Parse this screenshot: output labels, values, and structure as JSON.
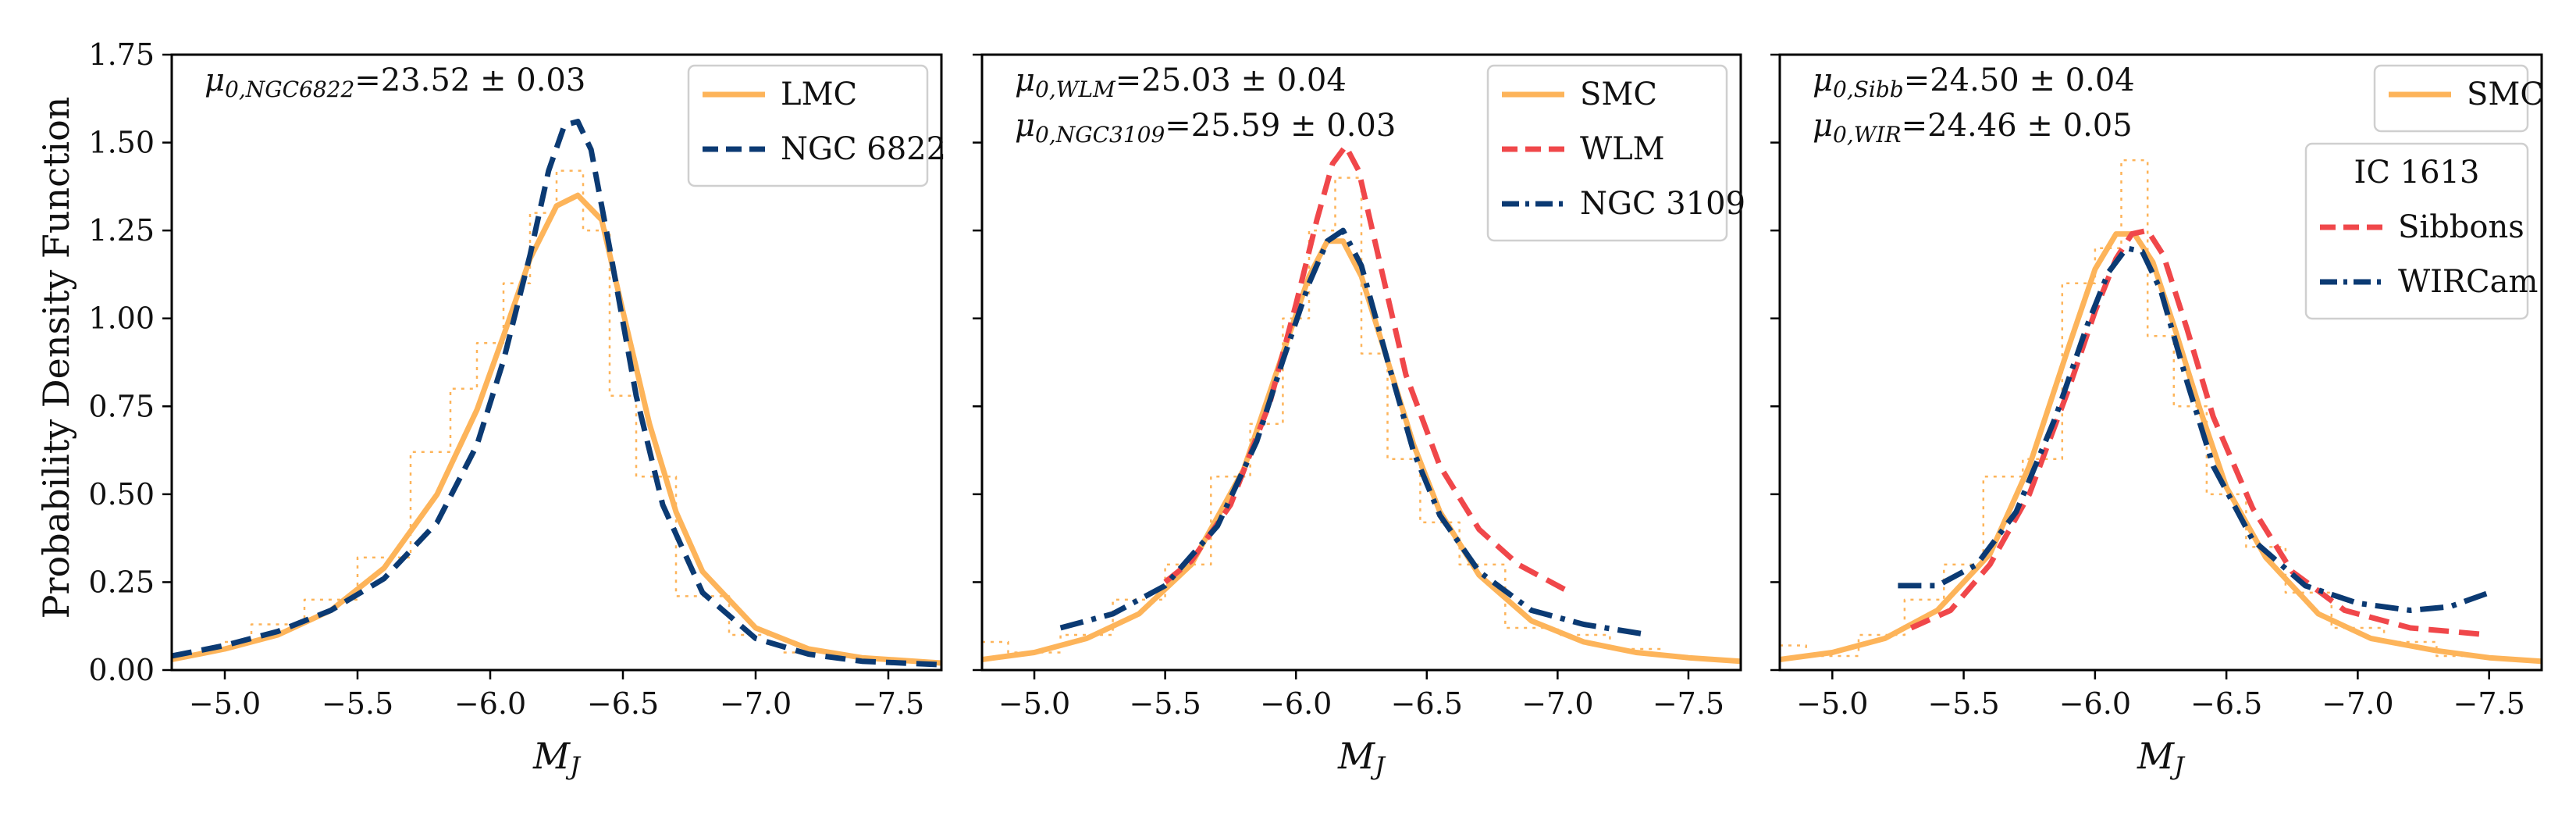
{
  "ylabel": "Probability Density Function",
  "xlabel_main": "M",
  "xlabel_sub": "J",
  "chart_data": [
    {
      "type": "line",
      "panel": "left",
      "xlim": [
        -4.8,
        -7.7
      ],
      "ylim": [
        0,
        1.75
      ],
      "xticks": [
        -5.0,
        -5.5,
        -6.0,
        -6.5,
        -7.0,
        -7.5
      ],
      "yticks": [
        0.0,
        0.25,
        0.5,
        0.75,
        1.0,
        1.25,
        1.5,
        1.75
      ],
      "xtick_labels": [
        "−5.0",
        "−5.5",
        "−6.0",
        "−6.5",
        "−7.0",
        "−7.5"
      ],
      "ytick_labels": [
        "0.00",
        "0.25",
        "0.50",
        "0.75",
        "1.00",
        "1.25",
        "1.50",
        "1.75"
      ],
      "annotations": [
        {
          "mu": "μ",
          "sub": "0,NGC6822",
          "text": "=23.52 ± 0.03"
        }
      ],
      "legend": {
        "title": "",
        "position": "top-right",
        "entries": [
          {
            "label": "LMC",
            "style": "solid",
            "color": "#fdb45a"
          },
          {
            "label": "NGC 6822",
            "style": "dashed",
            "color": "#0b3a73"
          }
        ]
      },
      "series": [
        {
          "name": "LMC",
          "style": "solid",
          "color": "#fdb45a",
          "x": [
            -4.8,
            -5.0,
            -5.2,
            -5.4,
            -5.6,
            -5.8,
            -5.95,
            -6.05,
            -6.15,
            -6.25,
            -6.33,
            -6.42,
            -6.5,
            -6.6,
            -6.7,
            -6.8,
            -7.0,
            -7.2,
            -7.4,
            -7.7
          ],
          "y": [
            0.03,
            0.06,
            0.1,
            0.17,
            0.29,
            0.5,
            0.74,
            0.95,
            1.17,
            1.32,
            1.35,
            1.28,
            1.02,
            0.7,
            0.45,
            0.28,
            0.12,
            0.06,
            0.035,
            0.02
          ]
        },
        {
          "name": "NGC 6822",
          "style": "dashed",
          "color": "#0b3a73",
          "x": [
            -4.8,
            -5.0,
            -5.2,
            -5.4,
            -5.6,
            -5.8,
            -5.95,
            -6.05,
            -6.15,
            -6.22,
            -6.28,
            -6.33,
            -6.38,
            -6.45,
            -6.55,
            -6.65,
            -6.8,
            -7.0,
            -7.2,
            -7.4,
            -7.7
          ],
          "y": [
            0.04,
            0.07,
            0.11,
            0.17,
            0.26,
            0.42,
            0.64,
            0.88,
            1.18,
            1.42,
            1.55,
            1.56,
            1.48,
            1.2,
            0.78,
            0.47,
            0.22,
            0.09,
            0.045,
            0.025,
            0.015
          ]
        },
        {
          "name": "LMC histogram",
          "style": "step-dotted",
          "color": "#fdb45a",
          "x": [
            -5.0,
            -5.2,
            -5.4,
            -5.6,
            -5.8,
            -5.9,
            -6.0,
            -6.1,
            -6.2,
            -6.3,
            -6.4,
            -6.5,
            -6.6,
            -6.8,
            -7.0,
            -7.2
          ],
          "y": [
            0.08,
            0.13,
            0.2,
            0.32,
            0.62,
            0.8,
            0.93,
            1.1,
            1.3,
            1.42,
            1.25,
            0.78,
            0.55,
            0.21,
            0.1,
            0.05
          ]
        }
      ]
    },
    {
      "type": "line",
      "panel": "middle",
      "xlim": [
        -4.8,
        -7.7
      ],
      "ylim": [
        0,
        1.75
      ],
      "xticks": [
        -5.0,
        -5.5,
        -6.0,
        -6.5,
        -7.0,
        -7.5
      ],
      "yticks": [
        0.0,
        0.25,
        0.5,
        0.75,
        1.0,
        1.25,
        1.5,
        1.75
      ],
      "xtick_labels": [
        "−5.0",
        "−5.5",
        "−6.0",
        "−6.5",
        "−7.0",
        "−7.5"
      ],
      "annotations": [
        {
          "mu": "μ",
          "sub": "0,WLM",
          "text": "=25.03 ± 0.04"
        },
        {
          "mu": "μ",
          "sub": "0,NGC3109",
          "text": "=25.59 ± 0.03"
        }
      ],
      "legend": {
        "title": "",
        "position": "top-right",
        "entries": [
          {
            "label": "SMC",
            "style": "solid",
            "color": "#fdb45a"
          },
          {
            "label": "WLM",
            "style": "dashed",
            "color": "#f0474a"
          },
          {
            "label": "NGC 3109",
            "style": "dashdot",
            "color": "#0b3a73"
          }
        ]
      },
      "series": [
        {
          "name": "SMC",
          "style": "solid",
          "color": "#fdb45a",
          "x": [
            -4.8,
            -5.0,
            -5.2,
            -5.4,
            -5.6,
            -5.8,
            -5.95,
            -6.05,
            -6.12,
            -6.18,
            -6.25,
            -6.35,
            -6.45,
            -6.55,
            -6.7,
            -6.9,
            -7.1,
            -7.3,
            -7.5,
            -7.7
          ],
          "y": [
            0.03,
            0.05,
            0.09,
            0.16,
            0.3,
            0.57,
            0.9,
            1.12,
            1.22,
            1.22,
            1.12,
            0.88,
            0.64,
            0.45,
            0.27,
            0.14,
            0.08,
            0.05,
            0.035,
            0.025
          ]
        },
        {
          "name": "WLM",
          "style": "dashed",
          "color": "#f0474a",
          "x": [
            -5.5,
            -5.6,
            -5.75,
            -5.9,
            -6.0,
            -6.08,
            -6.14,
            -6.19,
            -6.24,
            -6.32,
            -6.42,
            -6.55,
            -6.7,
            -6.85,
            -7.05
          ],
          "y": [
            0.25,
            0.31,
            0.47,
            0.76,
            1.04,
            1.28,
            1.44,
            1.49,
            1.42,
            1.16,
            0.84,
            0.58,
            0.4,
            0.3,
            0.22
          ]
        },
        {
          "name": "NGC 3109",
          "style": "dashdot",
          "color": "#0b3a73",
          "x": [
            -5.1,
            -5.3,
            -5.5,
            -5.7,
            -5.85,
            -5.95,
            -6.05,
            -6.12,
            -6.18,
            -6.25,
            -6.35,
            -6.45,
            -6.55,
            -6.7,
            -6.9,
            -7.1,
            -7.35
          ],
          "y": [
            0.12,
            0.16,
            0.24,
            0.41,
            0.65,
            0.88,
            1.1,
            1.22,
            1.25,
            1.15,
            0.88,
            0.62,
            0.44,
            0.28,
            0.17,
            0.13,
            0.1
          ]
        },
        {
          "name": "SMC histogram",
          "style": "step-dotted",
          "color": "#fdb45a",
          "x": [
            -4.8,
            -5.0,
            -5.2,
            -5.4,
            -5.6,
            -5.75,
            -5.9,
            -6.0,
            -6.1,
            -6.2,
            -6.3,
            -6.4,
            -6.55,
            -6.7,
            -6.9,
            -7.1,
            -7.3,
            -7.5
          ],
          "y": [
            0.08,
            0.05,
            0.1,
            0.2,
            0.3,
            0.55,
            0.7,
            1.0,
            1.25,
            1.4,
            0.9,
            0.6,
            0.42,
            0.3,
            0.12,
            0.1,
            0.06,
            0.04
          ]
        }
      ]
    },
    {
      "type": "line",
      "panel": "right",
      "xlim": [
        -4.8,
        -7.7
      ],
      "ylim": [
        0,
        1.75
      ],
      "xticks": [
        -5.0,
        -5.5,
        -6.0,
        -6.5,
        -7.0,
        -7.5
      ],
      "yticks": [
        0.0,
        0.25,
        0.5,
        0.75,
        1.0,
        1.25,
        1.5,
        1.75
      ],
      "xtick_labels": [
        "−5.0",
        "−5.5",
        "−6.0",
        "−6.5",
        "−7.0",
        "−7.5"
      ],
      "annotations": [
        {
          "mu": "μ",
          "sub": "0,Sibb",
          "text": "=24.50 ± 0.04"
        },
        {
          "mu": "μ",
          "sub": "0,WIR",
          "text": "=24.46 ± 0.05"
        }
      ],
      "legend": {
        "title": "",
        "position": "top-right",
        "entries": [
          {
            "label": "SMC",
            "style": "solid",
            "color": "#fdb45a"
          }
        ]
      },
      "legend2": {
        "title": "IC 1613",
        "position": "upper-right",
        "entries": [
          {
            "label": "Sibbons",
            "style": "dashed",
            "color": "#f0474a"
          },
          {
            "label": "WIRCam",
            "style": "dashdot",
            "color": "#0b3a73"
          }
        ]
      },
      "series": [
        {
          "name": "SMC",
          "style": "solid",
          "color": "#fdb45a",
          "x": [
            -4.8,
            -5.0,
            -5.2,
            -5.4,
            -5.6,
            -5.75,
            -5.9,
            -6.0,
            -6.08,
            -6.15,
            -6.22,
            -6.3,
            -6.4,
            -6.5,
            -6.65,
            -6.85,
            -7.05,
            -7.3,
            -7.5,
            -7.7
          ],
          "y": [
            0.03,
            0.05,
            0.09,
            0.17,
            0.33,
            0.58,
            0.92,
            1.14,
            1.24,
            1.24,
            1.16,
            0.98,
            0.74,
            0.52,
            0.32,
            0.16,
            0.09,
            0.055,
            0.035,
            0.025
          ]
        },
        {
          "name": "Sibbons",
          "style": "dashed",
          "color": "#f0474a",
          "x": [
            -5.3,
            -5.45,
            -5.6,
            -5.75,
            -5.9,
            -6.0,
            -6.08,
            -6.14,
            -6.2,
            -6.26,
            -6.35,
            -6.45,
            -6.6,
            -6.75,
            -6.95,
            -7.2,
            -7.5
          ],
          "y": [
            0.12,
            0.17,
            0.3,
            0.5,
            0.8,
            1.02,
            1.17,
            1.24,
            1.25,
            1.18,
            0.97,
            0.72,
            0.46,
            0.28,
            0.17,
            0.12,
            0.1
          ]
        },
        {
          "name": "WIRCam",
          "style": "dashdot",
          "color": "#0b3a73",
          "x": [
            -5.25,
            -5.4,
            -5.55,
            -5.7,
            -5.85,
            -5.97,
            -6.05,
            -6.12,
            -6.18,
            -6.25,
            -6.35,
            -6.45,
            -6.6,
            -6.8,
            -7.0,
            -7.2,
            -7.35,
            -7.5
          ],
          "y": [
            0.24,
            0.24,
            0.3,
            0.45,
            0.72,
            0.98,
            1.13,
            1.2,
            1.19,
            1.08,
            0.82,
            0.58,
            0.37,
            0.24,
            0.19,
            0.17,
            0.18,
            0.22
          ]
        },
        {
          "name": "SMC histogram",
          "style": "step-dotted",
          "color": "#fdb45a",
          "x": [
            -4.8,
            -5.0,
            -5.2,
            -5.35,
            -5.5,
            -5.65,
            -5.8,
            -5.95,
            -6.05,
            -6.15,
            -6.25,
            -6.35,
            -6.5,
            -6.65,
            -6.8,
            -7.0,
            -7.2,
            -7.4
          ],
          "y": [
            0.07,
            0.04,
            0.1,
            0.2,
            0.3,
            0.55,
            0.6,
            1.1,
            1.2,
            1.45,
            0.95,
            0.75,
            0.5,
            0.35,
            0.22,
            0.12,
            0.08,
            0.04
          ]
        }
      ]
    }
  ]
}
